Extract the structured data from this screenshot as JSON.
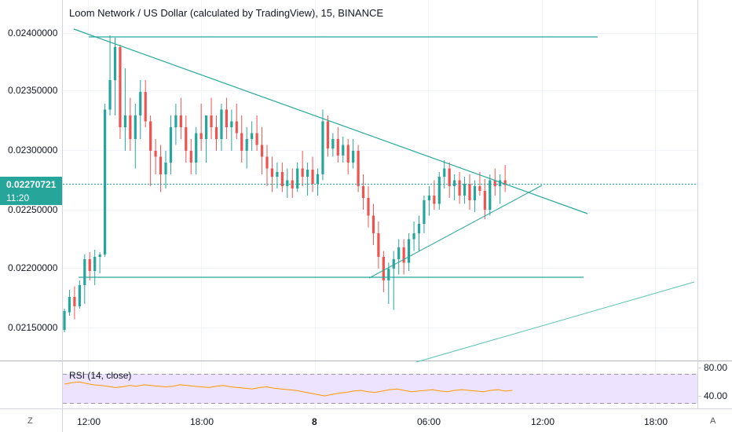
{
  "title": "Loom Network / US Dollar (calculated by TradingView), 15, BINANCE",
  "price_axis": {
    "ticks": [
      "0.02400000",
      "0.02350000",
      "0.02300000",
      "0.02250000",
      "0.02200000",
      "0.02150000"
    ],
    "current_price": "0.02270721",
    "countdown": "11:20"
  },
  "time_axis": {
    "ticks": [
      "12:00",
      "18:00",
      "8",
      "06:00",
      "12:00",
      "18:00"
    ]
  },
  "rsi": {
    "label": "RSI (14, close)",
    "ticks": [
      "80.00",
      "40.00"
    ],
    "upper_band": 70,
    "lower_band": 30
  },
  "corner_buttons": {
    "left": "Z",
    "right": "A"
  },
  "colors": {
    "up": "#26a69a",
    "down": "#ef5350",
    "trendline": "#26a69a",
    "rsi_line": "#ff9800",
    "rsi_band_fill": "#ede3ff",
    "price_label_bg": "#26a69a"
  },
  "chart_data": {
    "type": "candlestick",
    "symbol": "LOOMUSD",
    "interval": "15",
    "y_range": [
      0.0212,
      0.0243
    ],
    "bars_index": [
      [
        0.0214,
        0.0218
      ],
      [
        0.0218,
        0.0216
      ],
      [
        0.0216,
        0.0219
      ],
      [
        0.0219,
        0.0217
      ],
      [
        0.0217,
        0.0219
      ],
      [
        0.0219,
        0.0222
      ],
      [
        0.0222,
        0.0221
      ],
      [
        0.0221,
        0.0224
      ],
      [
        0.0222,
        0.0233
      ],
      [
        0.0233,
        0.0236
      ],
      [
        0.0236,
        0.0239
      ],
      [
        0.0239,
        0.0233
      ],
      [
        0.0233,
        0.023
      ],
      [
        0.023,
        0.0233
      ],
      [
        0.0233,
        0.0234
      ],
      [
        0.0234,
        0.0229
      ],
      [
        0.0229,
        0.0232
      ],
      [
        0.0232,
        0.023
      ],
      [
        0.023,
        0.0227
      ],
      [
        0.0227,
        0.0228
      ]
    ]
  }
}
